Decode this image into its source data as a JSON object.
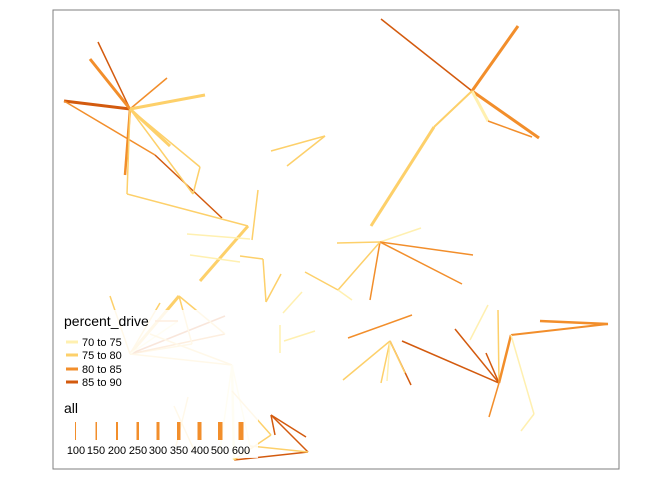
{
  "map": {
    "legend": {
      "color_title": "percent_drive",
      "color_items": [
        {
          "label": "70 to 75",
          "color": "#FFF0B0"
        },
        {
          "label": "75 to 80",
          "color": "#FDD06A"
        },
        {
          "label": "80 to 85",
          "color": "#F28E2B"
        },
        {
          "label": "85 to 90",
          "color": "#D35A0E"
        }
      ],
      "width_title": "all",
      "width_items": [
        "100",
        "150",
        "200",
        "250",
        "300",
        "350",
        "400",
        "500",
        "600"
      ],
      "width_color": "#F28E2B"
    },
    "colors": {
      "c1": "#FFF0B0",
      "c2": "#FDD06A",
      "c3": "#F28E2B",
      "c4": "#D35A0E",
      "frame": "#7f7f7f",
      "background": "#ffffff"
    }
  }
}
